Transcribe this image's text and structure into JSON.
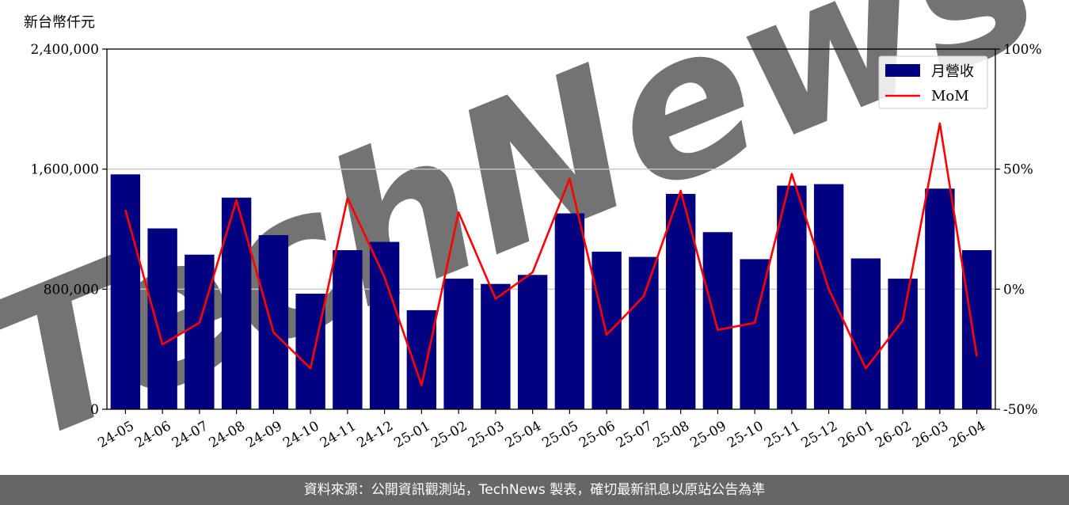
{
  "unit_label": "新台幣仟元",
  "footer_text": "資料來源：公開資訊觀測站，TechNews 製表，確切最新訊息以原站公告為準",
  "watermark_text": "TechNews",
  "colors": {
    "bar": "#000080",
    "line": "#ff0000",
    "grid": "#c8c8c8",
    "footer_bg": "#666666",
    "watermark_gray": "#e6e6e6",
    "watermark_red": "#f7dede"
  },
  "chart_data": {
    "type": "bar",
    "categories": [
      "24-05",
      "24-06",
      "24-07",
      "24-08",
      "24-09",
      "24-10",
      "24-11",
      "24-12",
      "25-01",
      "25-02",
      "25-03",
      "25-04",
      "25-05",
      "25-06",
      "25-07",
      "25-08",
      "25-09",
      "25-10",
      "25-11",
      "25-12",
      "26-01",
      "26-02",
      "26-03",
      "26-04"
    ],
    "series": [
      {
        "name": "月營收",
        "type": "bar",
        "axis": "left",
        "values": [
          1565000,
          1205000,
          1030000,
          1410000,
          1160000,
          770000,
          1060000,
          1115000,
          660000,
          870000,
          835000,
          895000,
          1305000,
          1050000,
          1015000,
          1435000,
          1180000,
          1000000,
          1490000,
          1500000,
          1005000,
          870000,
          1470000,
          1060000
        ]
      },
      {
        "name": "MoM",
        "type": "line",
        "axis": "right",
        "values": [
          33,
          -23,
          -14,
          37,
          -18,
          -33,
          38,
          5,
          -40,
          32,
          -4,
          7,
          46,
          -19,
          -3,
          41,
          -17,
          -14,
          48,
          0,
          -33,
          -13,
          69,
          -28
        ]
      }
    ],
    "y_left": {
      "min": 0,
      "max": 2400000,
      "ticks": [
        0,
        800000,
        1600000,
        2400000
      ],
      "tick_labels": [
        "0",
        "800,000",
        "1,600,000",
        "2,400,000"
      ]
    },
    "y_right": {
      "min": -50,
      "max": 100,
      "ticks": [
        -50,
        0,
        50,
        100
      ],
      "tick_labels": [
        "-50%",
        "0%",
        "50%",
        "100%"
      ]
    },
    "grid": "horizontal",
    "legend_position": "top-right",
    "title": "",
    "xlabel": "",
    "ylabel": ""
  }
}
